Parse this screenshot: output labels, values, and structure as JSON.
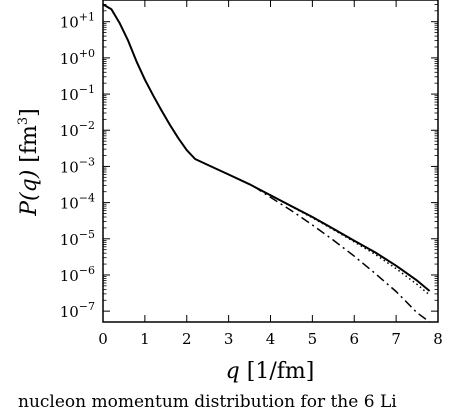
{
  "chart_data": {
    "type": "line",
    "title": "",
    "xlabel": "q [1/fm]",
    "ylabel": "P(q) [fm3]",
    "x_ticks": [
      "0",
      "1",
      "2",
      "3",
      "4",
      "5",
      "6",
      "7",
      "8"
    ],
    "y_ticks": [
      "10−7",
      "10−6",
      "10−5",
      "10−4",
      "10−3",
      "10−2",
      "10−1",
      "10+0",
      "10+1"
    ],
    "xlim": [
      0,
      8
    ],
    "ylim_log10": [
      -7.3,
      1.6
    ],
    "yscale": "log",
    "grid": false,
    "legend": "none",
    "series": [
      {
        "style": "solid",
        "x": [
          0.0,
          0.2,
          0.4,
          0.6,
          0.8,
          1.0,
          1.2,
          1.4,
          1.6,
          1.8,
          2.0,
          2.2,
          2.5,
          3.0,
          3.5,
          4.0,
          4.5,
          5.0,
          5.5,
          6.0,
          6.5,
          7.0,
          7.5,
          7.8
        ],
        "y": [
          30,
          22,
          9,
          3,
          0.8,
          0.25,
          0.09,
          0.035,
          0.014,
          0.006,
          0.0028,
          0.0016,
          0.0011,
          0.0006,
          0.00032,
          0.00016,
          8e-05,
          4e-05,
          1.9e-05,
          8.8e-06,
          4.2e-06,
          1.8e-06,
          7e-07,
          3.6e-07
        ]
      },
      {
        "style": "dotted",
        "x": [
          4.0,
          4.5,
          5.0,
          5.5,
          6.0,
          6.5,
          7.0,
          7.5,
          7.8
        ],
        "y": [
          0.00016,
          7.8e-05,
          3.8e-05,
          1.8e-05,
          8.2e-06,
          3.7e-06,
          1.5e-06,
          5.5e-07,
          2.8e-07
        ]
      },
      {
        "style": "dashdot",
        "x": [
          3.6,
          4.0,
          4.5,
          5.0,
          5.5,
          6.0,
          6.5,
          7.0,
          7.5,
          7.8
        ],
        "y": [
          0.00028,
          0.00014,
          6e-05,
          2.4e-05,
          9.2e-06,
          3.3e-06,
          1.1e-06,
          3.5e-07,
          9e-08,
          5e-08
        ]
      }
    ]
  },
  "caption_fragment": "nucleon momentum distribution for the 6 Li"
}
